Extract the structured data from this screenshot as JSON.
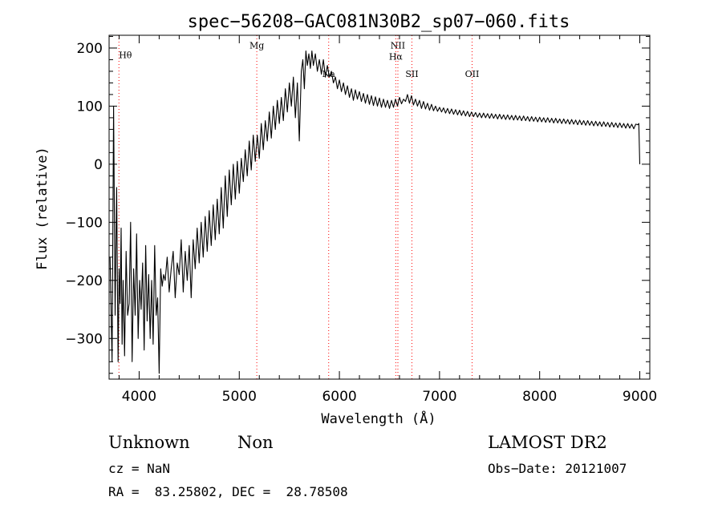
{
  "chart_data": {
    "type": "line",
    "title": "spec−56208−GAC081N30B2_sp07−060.fits",
    "xlabel": "Wavelength (Å)",
    "ylabel": "Flux (relative)",
    "xlim": [
      3700,
      9100
    ],
    "ylim": [
      -370,
      222
    ],
    "x_ticks": [
      4000,
      5000,
      6000,
      7000,
      8000,
      9000
    ],
    "x_tick_labels": [
      "4000",
      "5000",
      "6000",
      "7000",
      "8000",
      "9000"
    ],
    "y_ticks": [
      -300,
      -200,
      -100,
      0,
      100,
      200
    ],
    "y_tick_labels": [
      "−300",
      "−200",
      "−100",
      "0",
      "100",
      "200"
    ],
    "grid": false,
    "line_color": "#000000",
    "marker_color": "#ff0000",
    "spectral_lines": [
      {
        "label": "Hθ",
        "wavelength": 3798,
        "label_flux": 183
      },
      {
        "label": "Mg",
        "wavelength": 5175,
        "label_flux": 199
      },
      {
        "label": "Na",
        "wavelength": 5893,
        "label_flux": 150
      },
      {
        "label": "NII",
        "wavelength": 6584,
        "label_flux": 199
      },
      {
        "label": "Hα",
        "wavelength": 6563,
        "label_flux": 180
      },
      {
        "label": "SII",
        "wavelength": 6724,
        "label_flux": 150
      },
      {
        "label": "OII",
        "wavelength": 7325,
        "label_flux": 150
      }
    ],
    "spectrum": [
      [
        3710,
        -160
      ],
      [
        3730,
        -340
      ],
      [
        3745,
        100
      ],
      [
        3760,
        -260
      ],
      [
        3775,
        -40
      ],
      [
        3790,
        -340
      ],
      [
        3800,
        -180
      ],
      [
        3810,
        -240
      ],
      [
        3820,
        -110
      ],
      [
        3830,
        -310
      ],
      [
        3840,
        -200
      ],
      [
        3855,
        -330
      ],
      [
        3870,
        -150
      ],
      [
        3885,
        -260
      ],
      [
        3900,
        -240
      ],
      [
        3915,
        -100
      ],
      [
        3930,
        -340
      ],
      [
        3945,
        -180
      ],
      [
        3960,
        -260
      ],
      [
        3975,
        -120
      ],
      [
        3990,
        -300
      ],
      [
        4005,
        -200
      ],
      [
        4020,
        -250
      ],
      [
        4035,
        -170
      ],
      [
        4050,
        -320
      ],
      [
        4065,
        -140
      ],
      [
        4080,
        -270
      ],
      [
        4095,
        -190
      ],
      [
        4110,
        -300
      ],
      [
        4125,
        -200
      ],
      [
        4140,
        -310
      ],
      [
        4155,
        -140
      ],
      [
        4170,
        -260
      ],
      [
        4185,
        -230
      ],
      [
        4200,
        -360
      ],
      [
        4215,
        -180
      ],
      [
        4230,
        -210
      ],
      [
        4245,
        -190
      ],
      [
        4260,
        -200
      ],
      [
        4280,
        -160
      ],
      [
        4300,
        -220
      ],
      [
        4320,
        -180
      ],
      [
        4340,
        -150
      ],
      [
        4360,
        -230
      ],
      [
        4380,
        -170
      ],
      [
        4400,
        -190
      ],
      [
        4420,
        -130
      ],
      [
        4440,
        -220
      ],
      [
        4460,
        -150
      ],
      [
        4480,
        -200
      ],
      [
        4500,
        -140
      ],
      [
        4520,
        -230
      ],
      [
        4540,
        -130
      ],
      [
        4560,
        -180
      ],
      [
        4580,
        -110
      ],
      [
        4600,
        -170
      ],
      [
        4620,
        -100
      ],
      [
        4640,
        -160
      ],
      [
        4660,
        -90
      ],
      [
        4680,
        -150
      ],
      [
        4700,
        -80
      ],
      [
        4720,
        -140
      ],
      [
        4740,
        -70
      ],
      [
        4760,
        -130
      ],
      [
        4780,
        -60
      ],
      [
        4800,
        -120
      ],
      [
        4820,
        -40
      ],
      [
        4840,
        -110
      ],
      [
        4860,
        -20
      ],
      [
        4880,
        -90
      ],
      [
        4900,
        -10
      ],
      [
        4920,
        -70
      ],
      [
        4940,
        0
      ],
      [
        4960,
        -60
      ],
      [
        4980,
        5
      ],
      [
        5000,
        -50
      ],
      [
        5020,
        10
      ],
      [
        5040,
        -30
      ],
      [
        5060,
        25
      ],
      [
        5080,
        -20
      ],
      [
        5100,
        40
      ],
      [
        5120,
        -10
      ],
      [
        5140,
        50
      ],
      [
        5160,
        5
      ],
      [
        5180,
        50
      ],
      [
        5200,
        10
      ],
      [
        5220,
        70
      ],
      [
        5240,
        25
      ],
      [
        5260,
        75
      ],
      [
        5280,
        40
      ],
      [
        5300,
        90
      ],
      [
        5320,
        45
      ],
      [
        5340,
        100
      ],
      [
        5360,
        60
      ],
      [
        5380,
        110
      ],
      [
        5400,
        70
      ],
      [
        5420,
        115
      ],
      [
        5440,
        75
      ],
      [
        5460,
        130
      ],
      [
        5480,
        90
      ],
      [
        5500,
        140
      ],
      [
        5520,
        100
      ],
      [
        5540,
        150
      ],
      [
        5560,
        80
      ],
      [
        5580,
        140
      ],
      [
        5600,
        40
      ],
      [
        5620,
        160
      ],
      [
        5635,
        180
      ],
      [
        5650,
        130
      ],
      [
        5665,
        195
      ],
      [
        5680,
        170
      ],
      [
        5695,
        190
      ],
      [
        5710,
        165
      ],
      [
        5725,
        195
      ],
      [
        5740,
        170
      ],
      [
        5760,
        190
      ],
      [
        5780,
        160
      ],
      [
        5800,
        180
      ],
      [
        5820,
        155
      ],
      [
        5840,
        180
      ],
      [
        5860,
        150
      ],
      [
        5880,
        170
      ],
      [
        5900,
        150
      ],
      [
        5920,
        160
      ],
      [
        5940,
        140
      ],
      [
        5960,
        150
      ],
      [
        5980,
        130
      ],
      [
        6000,
        145
      ],
      [
        6020,
        125
      ],
      [
        6040,
        140
      ],
      [
        6060,
        120
      ],
      [
        6080,
        135
      ],
      [
        6100,
        115
      ],
      [
        6120,
        130
      ],
      [
        6140,
        110
      ],
      [
        6160,
        128
      ],
      [
        6180,
        112
      ],
      [
        6200,
        125
      ],
      [
        6220,
        108
      ],
      [
        6240,
        122
      ],
      [
        6260,
        105
      ],
      [
        6280,
        120
      ],
      [
        6300,
        103
      ],
      [
        6320,
        118
      ],
      [
        6340,
        101
      ],
      [
        6360,
        116
      ],
      [
        6380,
        100
      ],
      [
        6400,
        114
      ],
      [
        6420,
        98
      ],
      [
        6440,
        112
      ],
      [
        6460,
        98
      ],
      [
        6480,
        110
      ],
      [
        6500,
        96
      ],
      [
        6520,
        110
      ],
      [
        6540,
        98
      ],
      [
        6560,
        112
      ],
      [
        6580,
        100
      ],
      [
        6600,
        115
      ],
      [
        6620,
        104
      ],
      [
        6640,
        112
      ],
      [
        6660,
        108
      ],
      [
        6680,
        120
      ],
      [
        6700,
        105
      ],
      [
        6720,
        118
      ],
      [
        6740,
        102
      ],
      [
        6760,
        112
      ],
      [
        6780,
        100
      ],
      [
        6800,
        110
      ],
      [
        6820,
        96
      ],
      [
        6840,
        108
      ],
      [
        6860,
        95
      ],
      [
        6880,
        105
      ],
      [
        6900,
        93
      ],
      [
        6920,
        103
      ],
      [
        6940,
        92
      ],
      [
        6960,
        100
      ],
      [
        6980,
        91
      ],
      [
        7000,
        98
      ],
      [
        7020,
        90
      ],
      [
        7040,
        97
      ],
      [
        7060,
        88
      ],
      [
        7080,
        96
      ],
      [
        7100,
        87
      ],
      [
        7120,
        95
      ],
      [
        7140,
        86
      ],
      [
        7160,
        94
      ],
      [
        7180,
        85
      ],
      [
        7200,
        93
      ],
      [
        7220,
        84
      ],
      [
        7240,
        92
      ],
      [
        7260,
        83
      ],
      [
        7280,
        91
      ],
      [
        7300,
        82
      ],
      [
        7320,
        90
      ],
      [
        7340,
        82
      ],
      [
        7360,
        89
      ],
      [
        7380,
        81
      ],
      [
        7400,
        88
      ],
      [
        7420,
        80
      ],
      [
        7440,
        88
      ],
      [
        7460,
        80
      ],
      [
        7480,
        87
      ],
      [
        7500,
        79
      ],
      [
        7520,
        87
      ],
      [
        7540,
        79
      ],
      [
        7560,
        86
      ],
      [
        7580,
        78
      ],
      [
        7600,
        86
      ],
      [
        7620,
        78
      ],
      [
        7640,
        85
      ],
      [
        7660,
        77
      ],
      [
        7680,
        85
      ],
      [
        7700,
        77
      ],
      [
        7720,
        84
      ],
      [
        7740,
        76
      ],
      [
        7760,
        84
      ],
      [
        7780,
        76
      ],
      [
        7800,
        83
      ],
      [
        7820,
        75
      ],
      [
        7840,
        83
      ],
      [
        7860,
        75
      ],
      [
        7880,
        82
      ],
      [
        7900,
        74
      ],
      [
        7920,
        82
      ],
      [
        7940,
        74
      ],
      [
        7960,
        81
      ],
      [
        7980,
        73
      ],
      [
        8000,
        81
      ],
      [
        8020,
        73
      ],
      [
        8040,
        80
      ],
      [
        8060,
        72
      ],
      [
        8080,
        80
      ],
      [
        8100,
        72
      ],
      [
        8120,
        79
      ],
      [
        8140,
        71
      ],
      [
        8160,
        79
      ],
      [
        8180,
        71
      ],
      [
        8200,
        78
      ],
      [
        8220,
        70
      ],
      [
        8240,
        78
      ],
      [
        8260,
        70
      ],
      [
        8280,
        77
      ],
      [
        8300,
        69
      ],
      [
        8320,
        77
      ],
      [
        8340,
        69
      ],
      [
        8360,
        76
      ],
      [
        8380,
        68
      ],
      [
        8400,
        76
      ],
      [
        8420,
        68
      ],
      [
        8440,
        75
      ],
      [
        8460,
        67
      ],
      [
        8480,
        75
      ],
      [
        8500,
        67
      ],
      [
        8520,
        74
      ],
      [
        8540,
        66
      ],
      [
        8560,
        74
      ],
      [
        8580,
        66
      ],
      [
        8600,
        73
      ],
      [
        8620,
        65
      ],
      [
        8640,
        73
      ],
      [
        8660,
        65
      ],
      [
        8680,
        72
      ],
      [
        8700,
        64
      ],
      [
        8720,
        72
      ],
      [
        8740,
        64
      ],
      [
        8760,
        71
      ],
      [
        8780,
        63
      ],
      [
        8800,
        71
      ],
      [
        8820,
        63
      ],
      [
        8840,
        70
      ],
      [
        8860,
        62
      ],
      [
        8880,
        70
      ],
      [
        8900,
        62
      ],
      [
        8920,
        69
      ],
      [
        8940,
        61
      ],
      [
        8960,
        69
      ],
      [
        8980,
        68
      ],
      [
        8990,
        70
      ],
      [
        9000,
        0
      ]
    ]
  },
  "info": {
    "object_class": "Unknown",
    "object_subclass": "Non",
    "survey": "LAMOST DR2",
    "redshift": "cz = NaN",
    "obs_date": "Obs−Date: 20121007",
    "coordinates": "RA =  83.25802, DEC =  28.78508"
  }
}
